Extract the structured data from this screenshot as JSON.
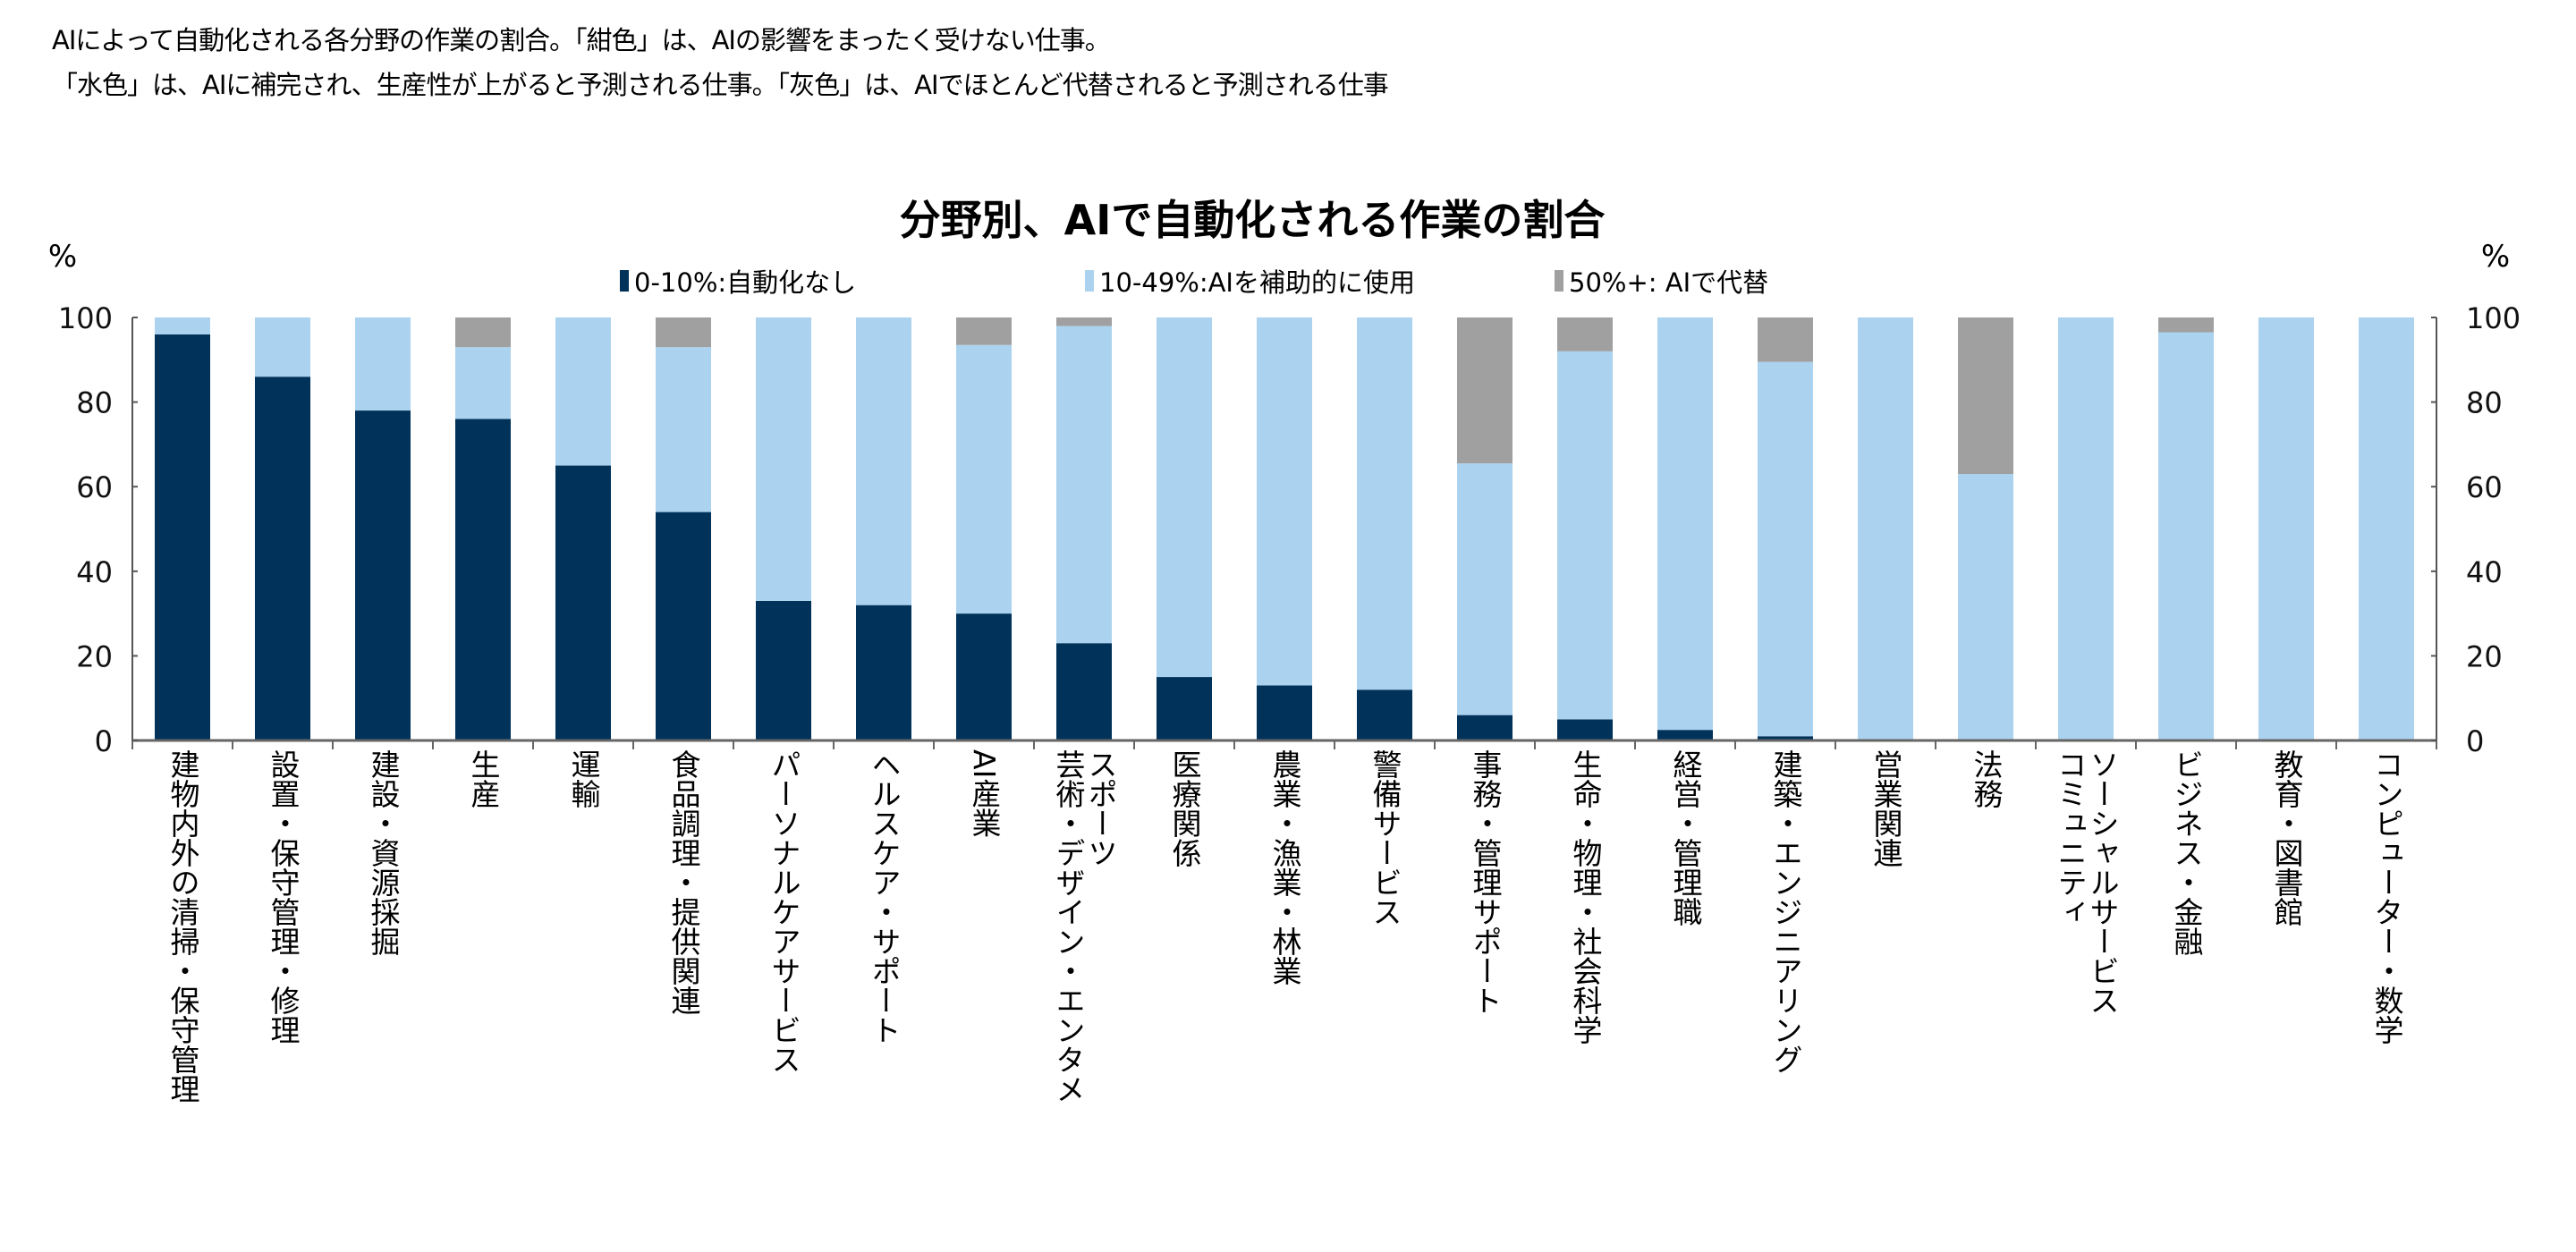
{
  "notes": {
    "line1": "AIによって自動化される各分野の作業の割合。「紺色」は、AIの影響をまったく受けない仕事。",
    "line2": "「水色」は、AIに補完され、生産性が上がると予測される仕事。「灰色」は、AIでほとんど代替されると予測される仕事"
  },
  "chart_data": {
    "type": "bar",
    "stacked": true,
    "title": "分野別、AIで自動化される作業の割合",
    "ylabel_left": "%",
    "ylabel_right": "%",
    "ylim": [
      0,
      100
    ],
    "yticks": [
      0,
      20,
      40,
      60,
      80,
      100
    ],
    "grid": false,
    "legend_position": "top",
    "categories": [
      "建物内外の清掃・保守管理",
      "設置・保守管理・修理",
      "建設・資源採掘",
      "生産",
      "運輸",
      "食品調理・提供関連",
      "パーソナルケアサービス",
      "ヘルスケア・サポート",
      "AI産業",
      "スポーツ\n芸術・デザイン・エンタメ",
      "医療関係",
      "農業・漁業・林業",
      "警備サービス",
      "事務・管理サポート",
      "生命・物理・社会科学",
      "経営・管理職",
      "建築・エンジニアリング",
      "営業関連",
      "法務",
      "ソーシャルサービス\nコミュニティ",
      "ビジネス・金融",
      "教育・図書館",
      "コンピューター・数学"
    ],
    "series": [
      {
        "name": "0-10%:自動化なし",
        "color": "#00325a",
        "values": [
          96,
          86,
          78,
          76,
          65,
          54,
          33,
          32,
          30,
          23,
          15,
          13,
          12,
          6,
          5,
          2.5,
          1,
          0,
          0,
          0,
          0,
          0,
          0
        ]
      },
      {
        "name": "10-49%:AIを補助的に使用",
        "color": "#abd2ee",
        "values": [
          4,
          14,
          22,
          17,
          35,
          39,
          67,
          68,
          63.5,
          75,
          85,
          87,
          88,
          59.5,
          87,
          97.5,
          88.5,
          100,
          63,
          100,
          96.5,
          100,
          100
        ]
      },
      {
        "name": "50%+: AIで代替",
        "color": "#a0a0a0",
        "values": [
          0,
          0,
          0,
          7,
          0,
          7,
          0,
          0,
          6.5,
          2,
          0,
          0,
          0,
          34.5,
          8,
          0,
          10.5,
          0,
          37,
          0,
          3.5,
          0,
          0
        ]
      }
    ]
  }
}
